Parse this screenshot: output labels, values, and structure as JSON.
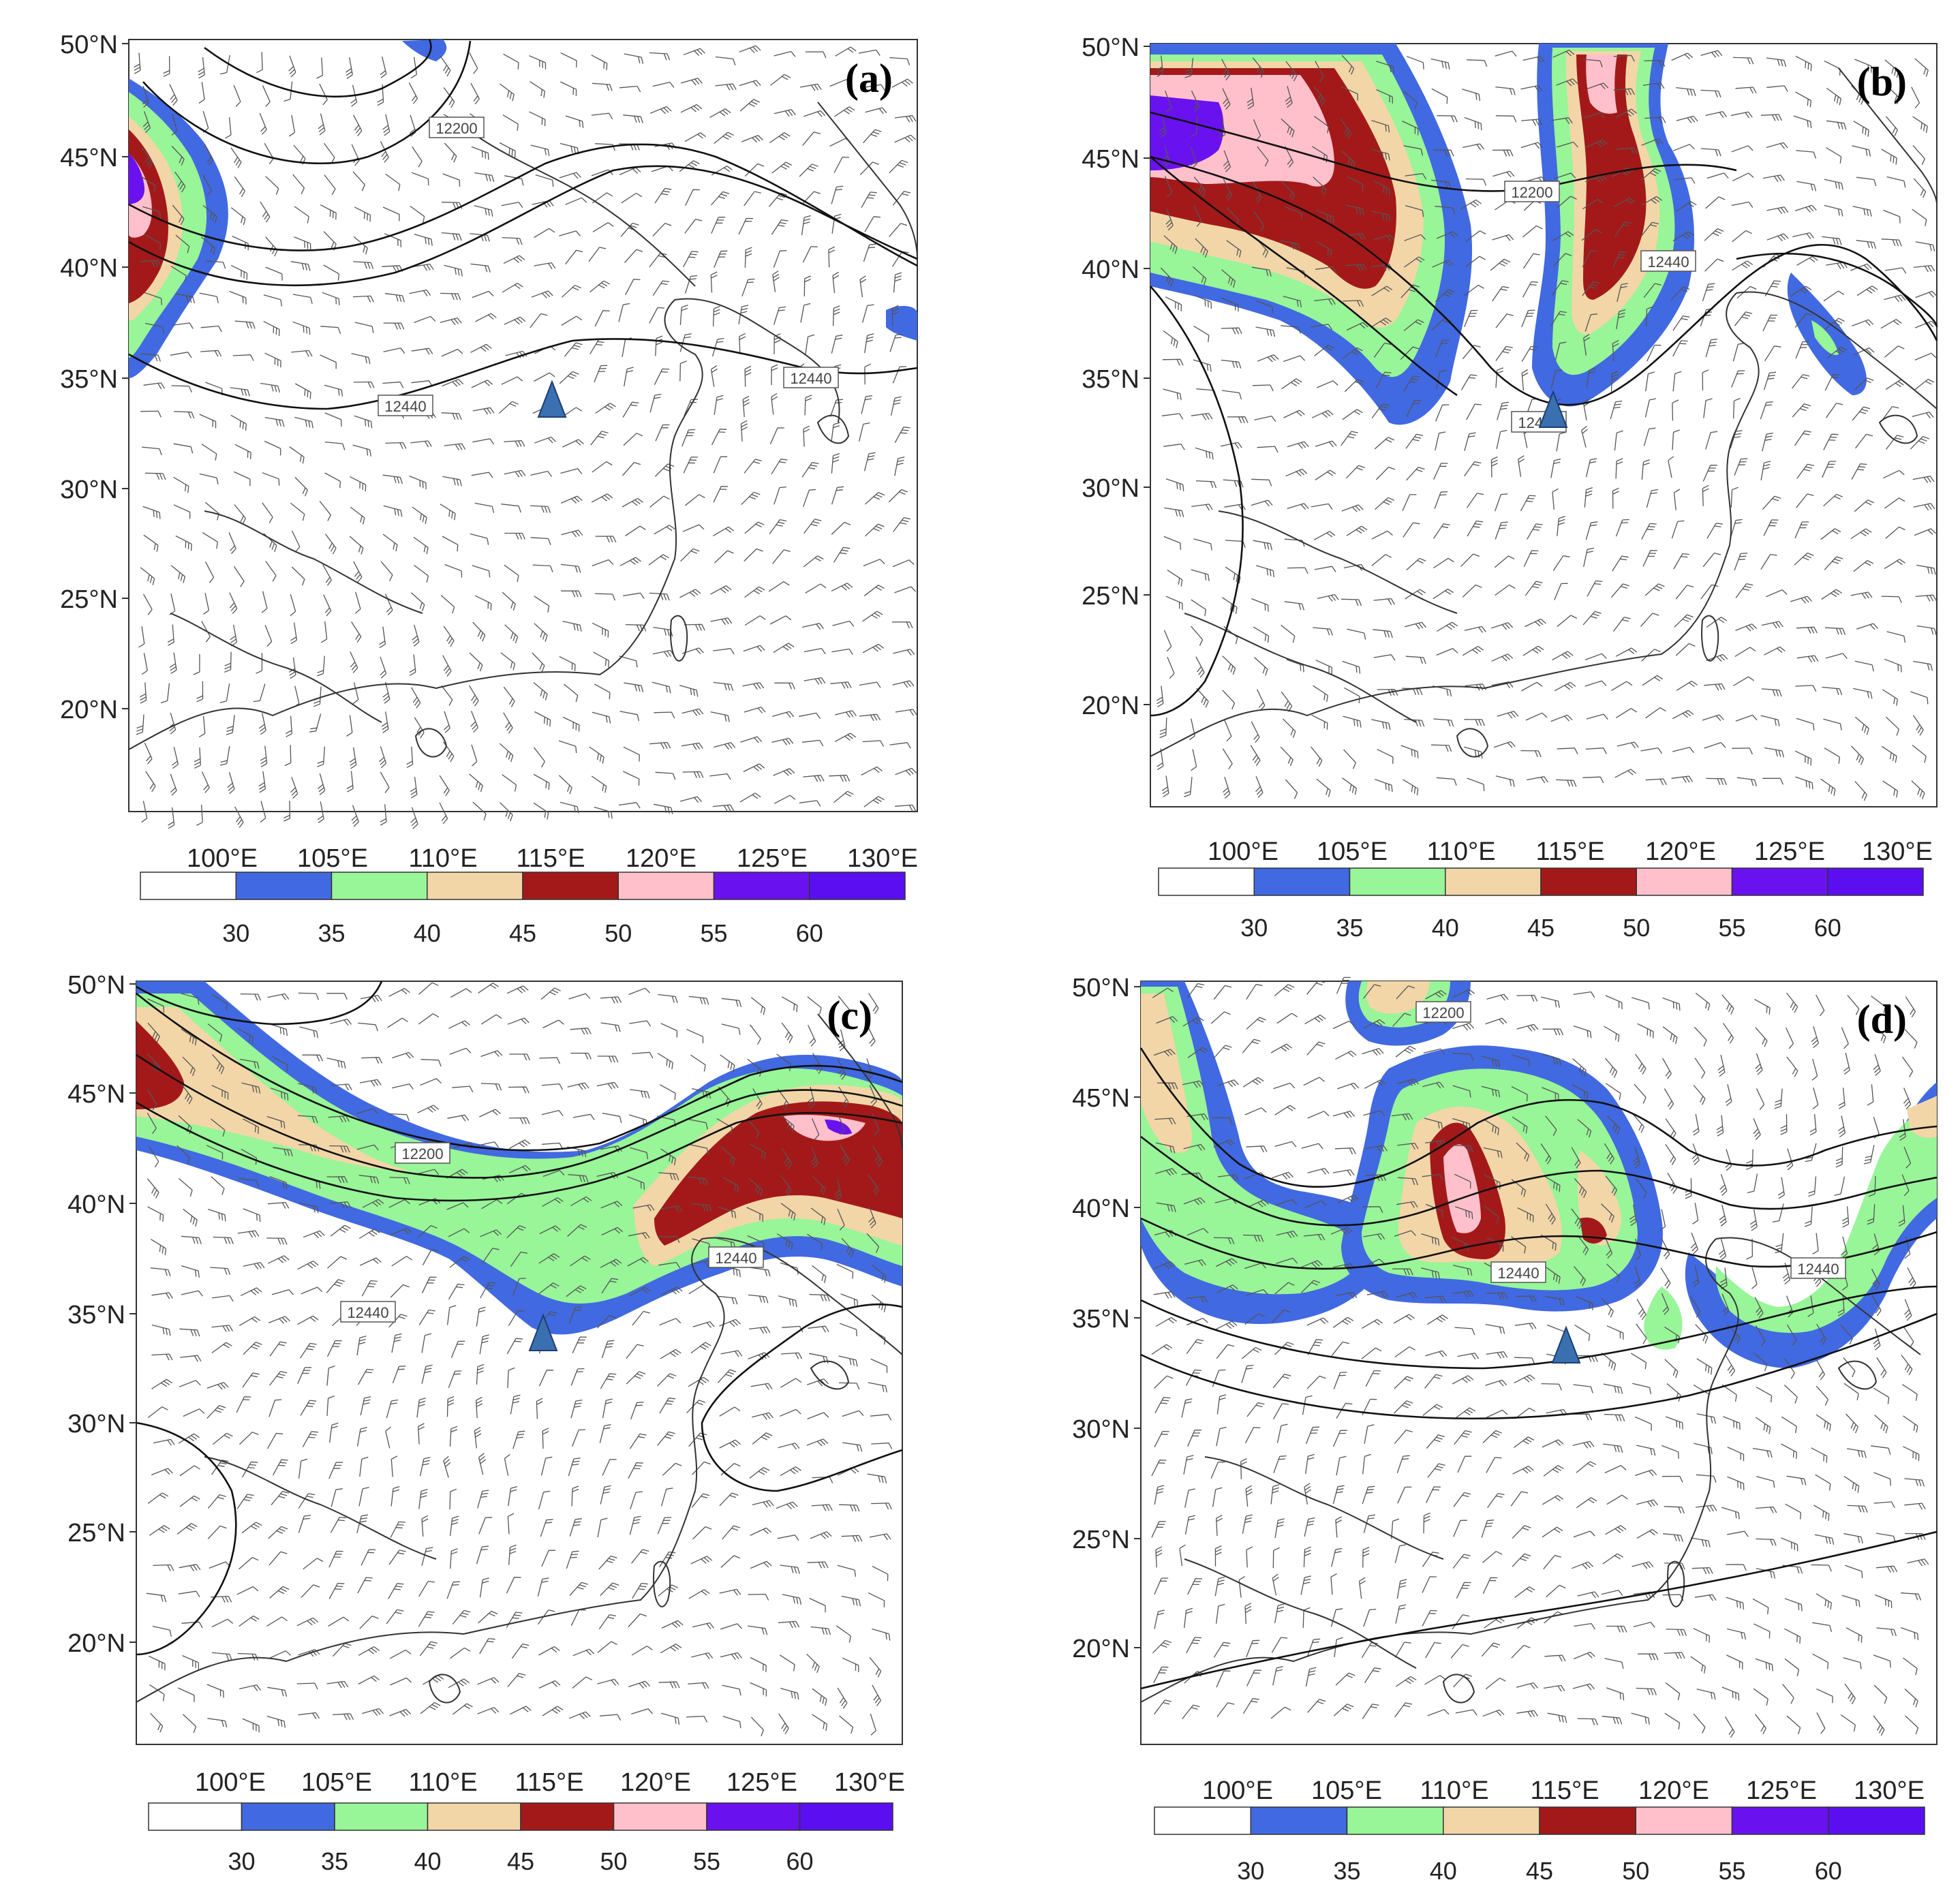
{
  "colors": {
    "bins": [
      "#ffffff",
      "#4169e1",
      "#98f598",
      "#f2d6a8",
      "#a31919",
      "#ffc0cb",
      "#6a11f0",
      "#5b0ff0"
    ],
    "contour": "#111111",
    "barb": "#555555",
    "border": "#333333",
    "station_marker": "#3a6fb0"
  },
  "legend": {
    "ticks": [
      "30",
      "35",
      "40",
      "45",
      "50",
      "55",
      "60"
    ]
  },
  "axes": {
    "lat_labels": [
      "50°N",
      "45°N",
      "40°N",
      "35°N",
      "30°N",
      "25°N",
      "20°N"
    ],
    "lon_labels": [
      "100°E",
      "105°E",
      "110°E",
      "115°E",
      "120°E",
      "125°E",
      "130°E"
    ]
  },
  "panels": [
    {
      "id": "a",
      "label": "(a)",
      "contour_labels": [
        "12200",
        "12440",
        "12440"
      ],
      "station": {
        "lon": 115.0,
        "lat": 34.0
      }
    },
    {
      "id": "b",
      "label": "(b)",
      "contour_labels": [
        "12200",
        "12440",
        "12440"
      ],
      "station": {
        "lon": 115.0,
        "lat": 34.0
      }
    },
    {
      "id": "c",
      "label": "(c)",
      "contour_labels": [
        "12200",
        "12440",
        "12440"
      ],
      "station": {
        "lon": 115.0,
        "lat": 34.0
      }
    },
    {
      "id": "d",
      "label": "(d)",
      "contour_labels": [
        "12200",
        "12440",
        "12440"
      ],
      "station": {
        "lon": 115.0,
        "lat": 34.0
      }
    }
  ]
}
